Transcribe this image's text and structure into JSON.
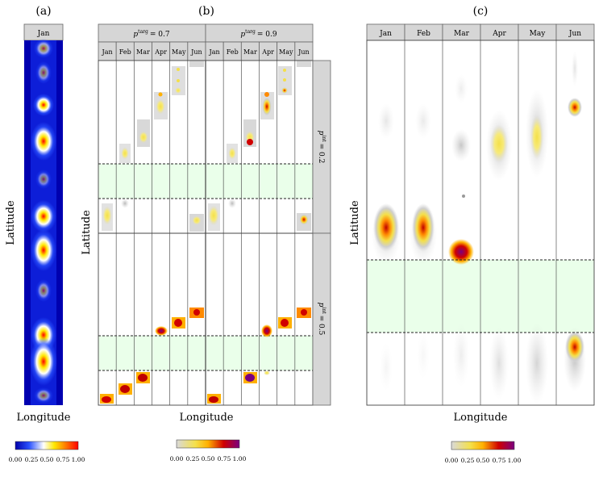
{
  "chart_data": [
    {
      "type": "heatmap",
      "panel": "(a)",
      "months": [
        "Jan"
      ],
      "xlabel": "Longitude",
      "ylabel": "Latitude",
      "colorbar_ticks": [
        "0.00",
        "0.25",
        "0.50",
        "0.75",
        "1.00"
      ],
      "colormap": [
        "#0000aa",
        "#2a52ff",
        "#ffffff",
        "#ffe800",
        "#ff0000"
      ]
    },
    {
      "type": "heatmap",
      "panel": "(b)",
      "p_targ_label": "p",
      "p_targ_sup": "targ",
      "p_targ": [
        "= 0.7",
        "= 0.9"
      ],
      "p_int_label": "p",
      "p_int_sup": "int",
      "p_int": [
        "= 0.2",
        "= 0.5"
      ],
      "months": [
        "Jan",
        "Feb",
        "Mar",
        "Apr",
        "May",
        "Jun"
      ],
      "xlabel": "Longitude",
      "ylabel": "Latitude",
      "colorbar_ticks": [
        "0.00",
        "0.25",
        "0.50",
        "0.75",
        "1.00"
      ],
      "colormap": [
        "#d9d9d9",
        "#f4e04a",
        "#ffb000",
        "#d00000",
        "#7a0080"
      ]
    },
    {
      "type": "heatmap",
      "panel": "(c)",
      "months": [
        "Jan",
        "Feb",
        "Mar",
        "Apr",
        "May",
        "Jun"
      ],
      "xlabel": "Longitude",
      "ylabel": "Latitude",
      "colorbar_ticks": [
        "0.00",
        "0.25",
        "0.50",
        "0.75",
        "1.00"
      ],
      "colormap": [
        "#d9d9d9",
        "#f4e04a",
        "#ffb000",
        "#d00000",
        "#7a0080"
      ]
    }
  ]
}
